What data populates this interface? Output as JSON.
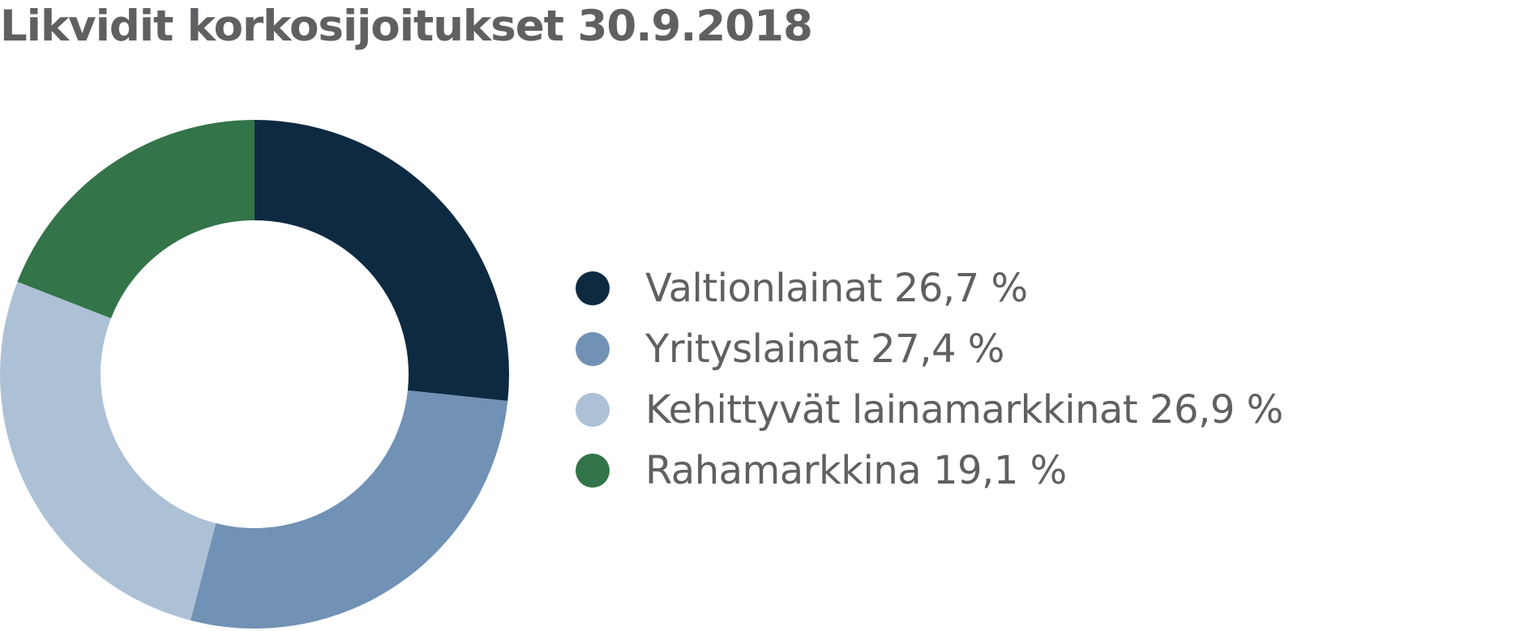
{
  "chart_data": {
    "type": "pie",
    "title": "Likvidit korkosijoitukset 30.9.2018",
    "donut": true,
    "legend_position": "right",
    "slices": [
      {
        "label": "Valtionlainat 26,7 %",
        "value": 26.7,
        "color": "#0e2a41"
      },
      {
        "label": "Yrityslainat 27,4 %",
        "value": 27.4,
        "color": "#7192b5"
      },
      {
        "label": "Kehittyvät lainamarkkinat 26,9 %",
        "value": 26.9,
        "color": "#adc1d6"
      },
      {
        "label": "Rahamarkkina 19,1 %",
        "value": 19.1,
        "color": "#337449"
      }
    ]
  }
}
